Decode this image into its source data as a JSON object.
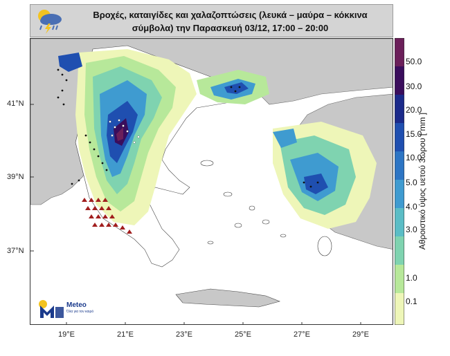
{
  "title": {
    "line1": "Βροχές, καταιγίδες και χαλαζοπτώσεις (λευκά – μαύρα – κόκκινα",
    "line2": "σύμβολα) την Παρασκευή 03/12, 17:00 – 20:00"
  },
  "icon": "rain-cloud-lightning-icon",
  "latitude_labels": [
    "41°N",
    "39°N",
    "37°N"
  ],
  "longitude_labels": [
    "19°E",
    "21°E",
    "23°E",
    "25°E",
    "27°E",
    "29°E"
  ],
  "colorbar": {
    "title": "Αθροιστικό ύψος υετού 3ωρου [ mm ]",
    "ticks": [
      "50.0",
      "30.0",
      "20.0",
      "15.0",
      "10.0",
      "5.0",
      "4.0",
      "3.0",
      "1.0",
      "0.1"
    ],
    "colors": [
      "#6b1f5a",
      "#3a0d5c",
      "#1b2a8a",
      "#1f4fb0",
      "#2d75c4",
      "#3f9bd0",
      "#5bbdc6",
      "#7fd3b0",
      "#b7e89a",
      "#eef6b8"
    ]
  },
  "map_colors": {
    "sea": "#ffffff",
    "land_outside": "#c8c8c8",
    "border": "#333333"
  },
  "logo": {
    "name": "Meteo",
    "tagline": "Όλα για τον καιρό"
  }
}
